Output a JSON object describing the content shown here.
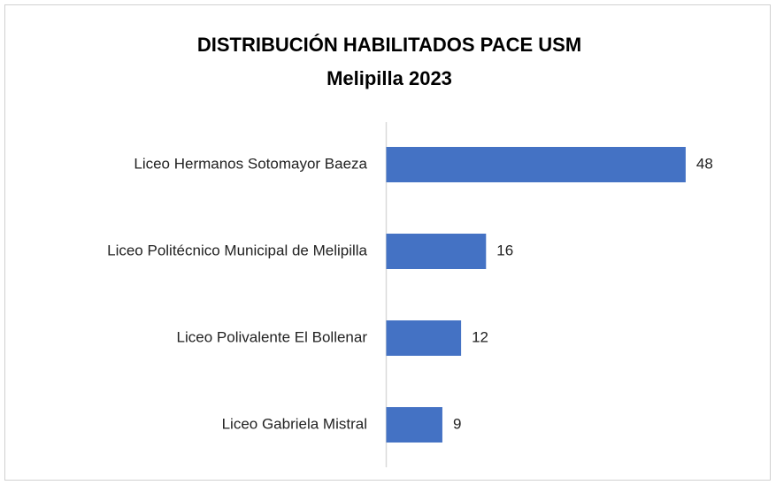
{
  "chart_data": {
    "type": "barh",
    "title": [
      "DISTRIBUCIÓN HABILITADOS PACE USM",
      "Melipilla 2023"
    ],
    "categories": [
      "Liceo Hermanos Sotomayor Baeza",
      "Liceo Politécnico Municipal de Melipilla",
      "Liceo Polivalente El Bollenar",
      "Liceo Gabriela Mistral"
    ],
    "values": [
      48,
      16,
      12,
      9
    ],
    "color": "#4472c4",
    "xlim": [
      0,
      60
    ]
  }
}
